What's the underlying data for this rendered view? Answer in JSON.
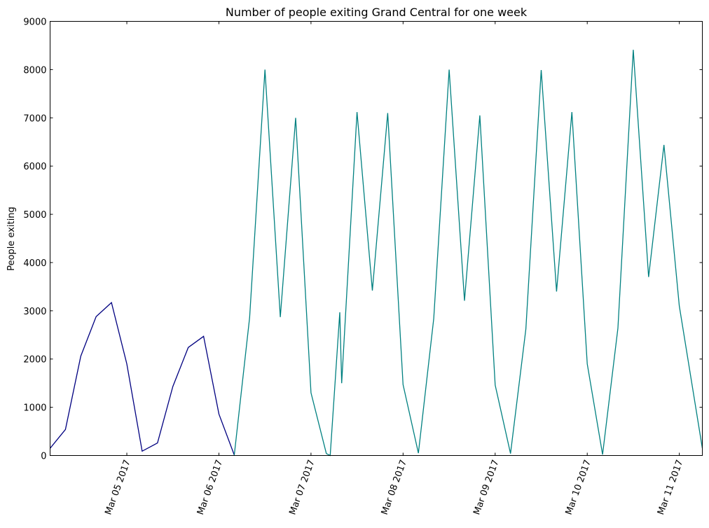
{
  "chart_data": {
    "type": "line",
    "title": "Number of people exiting Grand Central for one week",
    "xlabel": "",
    "ylabel": "People exiting",
    "ylim": [
      0,
      9000
    ],
    "xlim": [
      "2017-03-04T04:00",
      "2017-03-11T06:00"
    ],
    "y_ticks": [
      0,
      1000,
      2000,
      3000,
      4000,
      5000,
      6000,
      7000,
      8000,
      9000
    ],
    "y_tick_labels": [
      "0",
      "1000",
      "2000",
      "3000",
      "4000",
      "5000",
      "6000",
      "7000",
      "8000",
      "9000"
    ],
    "x_ticks": [
      "2017-03-05T00:00",
      "2017-03-06T00:00",
      "2017-03-07T00:00",
      "2017-03-08T00:00",
      "2017-03-09T00:00",
      "2017-03-10T00:00",
      "2017-03-11T00:00"
    ],
    "x_tick_labels": [
      "Mar 05 2017",
      "Mar 06 2017",
      "Mar 07 2017",
      "Mar 08 2017",
      "Mar 09 2017",
      "Mar 10 2017",
      "Mar 11 2017"
    ],
    "grid": false,
    "series": [
      {
        "color": "#000080",
        "points": [
          {
            "x": "2017-03-04T04:00",
            "y": 150
          },
          {
            "x": "2017-03-04T08:00",
            "y": 540
          },
          {
            "x": "2017-03-04T12:00",
            "y": 2060
          },
          {
            "x": "2017-03-04T16:00",
            "y": 2880
          },
          {
            "x": "2017-03-04T20:00",
            "y": 3170
          },
          {
            "x": "2017-03-05T00:00",
            "y": 1900
          },
          {
            "x": "2017-03-05T04:00",
            "y": 90
          },
          {
            "x": "2017-03-05T08:00",
            "y": 260
          },
          {
            "x": "2017-03-05T12:00",
            "y": 1430
          },
          {
            "x": "2017-03-05T16:00",
            "y": 2240
          },
          {
            "x": "2017-03-05T20:00",
            "y": 2470
          },
          {
            "x": "2017-03-06T00:00",
            "y": 860
          },
          {
            "x": "2017-03-06T04:00",
            "y": 10
          }
        ]
      },
      {
        "color": "#008080",
        "points": [
          {
            "x": "2017-03-06T04:00",
            "y": 10
          },
          {
            "x": "2017-03-06T08:00",
            "y": 2860
          },
          {
            "x": "2017-03-06T12:00",
            "y": 8000
          },
          {
            "x": "2017-03-06T16:00",
            "y": 2870
          },
          {
            "x": "2017-03-06T20:00",
            "y": 7000
          },
          {
            "x": "2017-03-07T00:00",
            "y": 1300
          },
          {
            "x": "2017-03-07T04:00",
            "y": 40
          },
          {
            "x": "2017-03-07T05:00",
            "y": 0
          },
          {
            "x": "2017-03-07T07:30",
            "y": 2970
          },
          {
            "x": "2017-03-07T08:00",
            "y": 1500
          },
          {
            "x": "2017-03-07T12:00",
            "y": 7120
          },
          {
            "x": "2017-03-07T16:00",
            "y": 3420
          },
          {
            "x": "2017-03-07T20:00",
            "y": 7100
          },
          {
            "x": "2017-03-08T00:00",
            "y": 1470
          },
          {
            "x": "2017-03-08T04:00",
            "y": 50
          },
          {
            "x": "2017-03-08T08:00",
            "y": 2840
          },
          {
            "x": "2017-03-08T12:00",
            "y": 8000
          },
          {
            "x": "2017-03-08T16:00",
            "y": 3210
          },
          {
            "x": "2017-03-08T20:00",
            "y": 7050
          },
          {
            "x": "2017-03-09T00:00",
            "y": 1460
          },
          {
            "x": "2017-03-09T04:00",
            "y": 40
          },
          {
            "x": "2017-03-09T08:00",
            "y": 2620
          },
          {
            "x": "2017-03-09T12:00",
            "y": 7990
          },
          {
            "x": "2017-03-09T16:00",
            "y": 3400
          },
          {
            "x": "2017-03-09T20:00",
            "y": 7120
          },
          {
            "x": "2017-03-10T00:00",
            "y": 1900
          },
          {
            "x": "2017-03-10T04:00",
            "y": 20
          },
          {
            "x": "2017-03-10T08:00",
            "y": 2640
          },
          {
            "x": "2017-03-10T12:00",
            "y": 8410
          },
          {
            "x": "2017-03-10T16:00",
            "y": 3700
          },
          {
            "x": "2017-03-10T20:00",
            "y": 6440
          },
          {
            "x": "2017-03-11T00:00",
            "y": 3100
          },
          {
            "x": "2017-03-11T06:00",
            "y": 150
          }
        ]
      }
    ]
  }
}
